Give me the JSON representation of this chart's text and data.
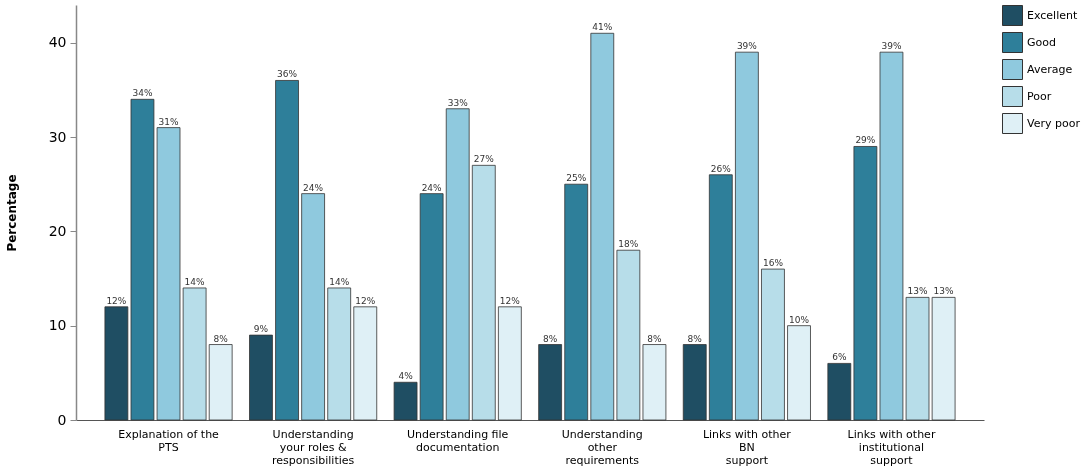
{
  "chart_data": {
    "type": "bar",
    "ylabel": "Percentage",
    "categories": [
      "Explanation of the\nPTS",
      "Understanding\nyour roles &\nresponsibilities",
      "Understanding file\ndocumentation",
      "Understanding\nother\nrequirements",
      "Links with other\nBN\nsupport",
      "Links with other\ninstitutional\nsupport"
    ],
    "series": [
      {
        "name": "Excellent",
        "color": "#1f4e63",
        "values": [
          12,
          9,
          4,
          8,
          8,
          6
        ],
        "value_labels": [
          "12%",
          "9%",
          "4%",
          "8%",
          "8%",
          "6%"
        ]
      },
      {
        "name": "Good",
        "color": "#2e7f9a",
        "values": [
          34,
          36,
          24,
          25,
          26,
          29
        ],
        "value_labels": [
          "34%",
          "36%",
          "24%",
          "25%",
          "26%",
          "29%"
        ]
      },
      {
        "name": "Average",
        "color": "#8fc9de",
        "values": [
          31,
          24,
          33,
          41,
          39,
          39
        ],
        "value_labels": [
          "31%",
          "24%",
          "33%",
          "41%",
          "39%",
          "39%"
        ]
      },
      {
        "name": "Poor",
        "color": "#b7dde9",
        "values": [
          14,
          14,
          27,
          18,
          16,
          13
        ],
        "value_labels": [
          "14%",
          "14%",
          "27%",
          "18%",
          "16%",
          "13%"
        ]
      },
      {
        "name": "Very poor",
        "color": "#dff0f6",
        "values": [
          8,
          12,
          12,
          8,
          10,
          13
        ],
        "value_labels": [
          "8%",
          "12%",
          "12%",
          "8%",
          "10%",
          "13%"
        ]
      }
    ],
    "ylim": [
      0,
      44
    ],
    "yticks": [
      0,
      10,
      20,
      30,
      40
    ],
    "grid": false,
    "legend": "top right"
  }
}
